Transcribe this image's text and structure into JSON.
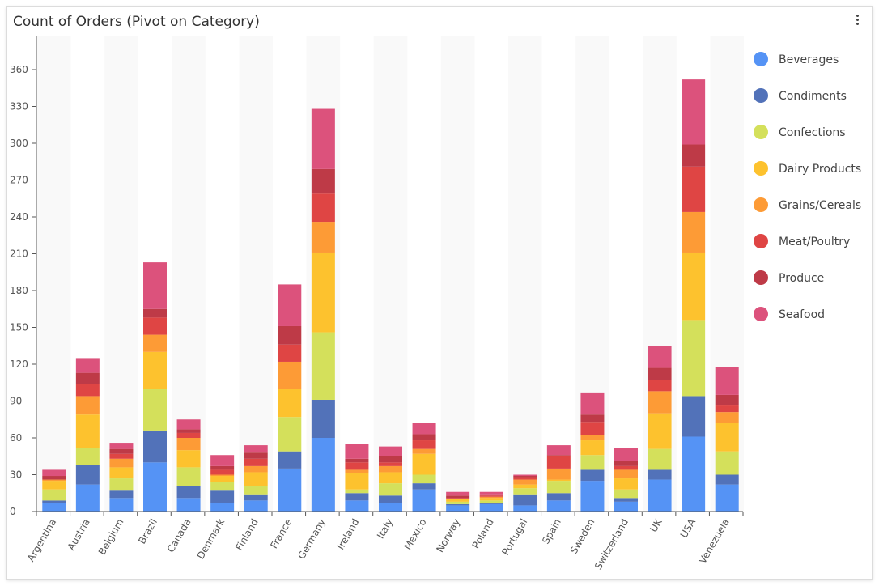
{
  "title": "Count of Orders (Pivot on Category)",
  "menu_icon": "more-vertical-icon",
  "chart_data": {
    "type": "bar",
    "stacked": true,
    "title": "Count of Orders (Pivot on Category)",
    "xlabel": "",
    "ylabel": "",
    "ylim": [
      0,
      360
    ],
    "yticks": [
      0,
      30,
      60,
      90,
      120,
      150,
      180,
      210,
      240,
      270,
      300,
      330,
      360
    ],
    "legend_position": "right",
    "categories": [
      "Argentina",
      "Austria",
      "Belgium",
      "Brazil",
      "Canada",
      "Denmark",
      "Finland",
      "France",
      "Germany",
      "Ireland",
      "Italy",
      "Mexico",
      "Norway",
      "Poland",
      "Portugal",
      "Spain",
      "Sweden",
      "Switzerland",
      "UK",
      "USA",
      "Venezuela"
    ],
    "series": [
      {
        "name": "Beverages",
        "color": "#5593f5",
        "values": [
          7,
          22,
          11,
          40,
          11,
          7,
          9,
          35,
          60,
          9,
          7,
          18,
          5,
          6,
          5,
          9,
          25,
          8,
          26,
          61,
          22
        ]
      },
      {
        "name": "Condiments",
        "color": "#5272b9",
        "values": [
          2,
          16,
          6,
          26,
          10,
          10,
          5,
          14,
          31,
          6,
          6,
          5,
          1,
          1,
          9,
          6,
          9,
          3,
          8,
          33,
          8
        ]
      },
      {
        "name": "Confections",
        "color": "#d4e05b",
        "values": [
          9,
          14,
          10,
          34,
          15,
          7,
          7,
          28,
          55,
          3,
          10,
          7,
          2,
          2,
          5,
          10,
          12,
          7,
          17,
          62,
          19
        ]
      },
      {
        "name": "Dairy Products",
        "color": "#fdc22e",
        "values": [
          7,
          27,
          9,
          30,
          14,
          5,
          11,
          23,
          65,
          13,
          9,
          17,
          2,
          2,
          3,
          1,
          12,
          9,
          29,
          55,
          23
        ]
      },
      {
        "name": "Grains/Cereals",
        "color": "#fd9b36",
        "values": [
          1,
          15,
          7,
          14,
          10,
          1,
          5,
          22,
          25,
          3,
          5,
          4,
          0,
          1,
          4,
          9,
          4,
          7,
          18,
          33,
          9
        ]
      },
      {
        "name": "Meat/Poultry",
        "color": "#df4544",
        "values": [
          0,
          10,
          4,
          14,
          4,
          4,
          6,
          14,
          23,
          6,
          3,
          7,
          1,
          1,
          2,
          10,
          11,
          3,
          9,
          37,
          6
        ]
      },
      {
        "name": "Produce",
        "color": "#be3a47",
        "values": [
          3,
          9,
          4,
          7,
          3,
          3,
          5,
          15,
          20,
          3,
          5,
          5,
          2,
          1,
          1,
          1,
          6,
          4,
          10,
          18,
          8
        ]
      },
      {
        "name": "Seafood",
        "color": "#dc527c",
        "values": [
          5,
          12,
          5,
          38,
          8,
          9,
          6,
          34,
          49,
          12,
          8,
          9,
          3,
          2,
          1,
          8,
          18,
          11,
          18,
          53,
          23
        ]
      }
    ]
  }
}
